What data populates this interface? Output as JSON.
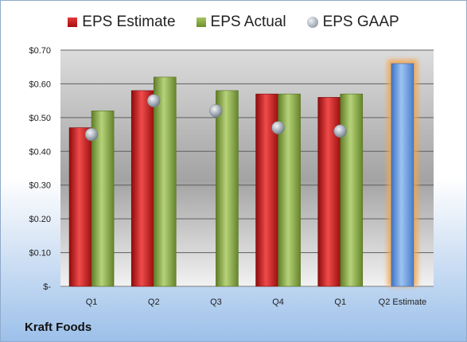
{
  "chart_data": {
    "type": "bar",
    "categories": [
      "Q1",
      "Q2",
      "Q3",
      "Q4",
      "Q1",
      "Q2 Estimate"
    ],
    "series": [
      {
        "name": "EPS Estimate",
        "values": [
          0.47,
          0.58,
          null,
          0.57,
          0.56,
          null
        ],
        "color": "#c41e1e"
      },
      {
        "name": "EPS Actual",
        "values": [
          0.52,
          0.62,
          0.58,
          0.57,
          0.57,
          null
        ],
        "color": "#8aaa47"
      },
      {
        "name": "EPS GAAP",
        "values": [
          0.45,
          0.55,
          0.52,
          0.47,
          0.46,
          null
        ],
        "color": "#9aa3ad"
      }
    ],
    "highlight": {
      "category": "Q2 Estimate",
      "value": 0.66,
      "color": "#5b8fd6",
      "glow": "#f5a650"
    },
    "y_ticks": [
      0,
      0.1,
      0.2,
      0.3,
      0.4,
      0.5,
      0.6,
      0.7
    ],
    "y_tick_labels": [
      "$-",
      "$0.10",
      "$0.20",
      "$0.30",
      "$0.40",
      "$0.50",
      "$0.60",
      "$0.70"
    ],
    "ylim": [
      0,
      0.7
    ],
    "grid": true,
    "legend_position": "top"
  },
  "company": "Kraft Foods"
}
